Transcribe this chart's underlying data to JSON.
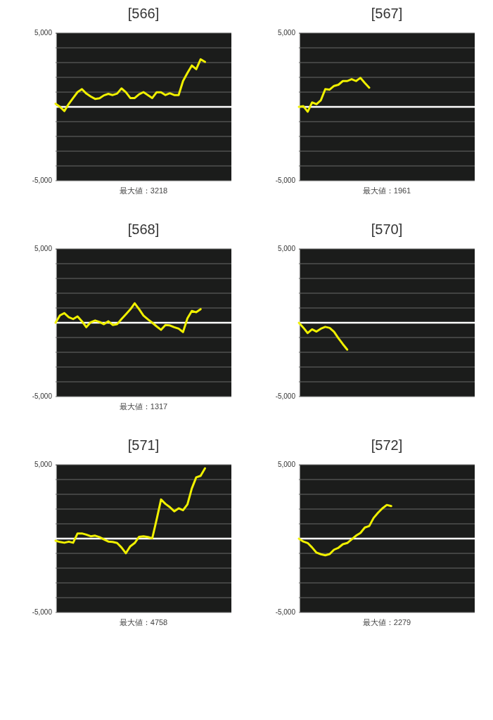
{
  "chart_data": [
    {
      "type": "line",
      "title": "[566]",
      "categories": [
        null,
        null,
        null,
        null,
        null,
        null,
        null,
        null,
        null,
        null,
        null,
        null,
        null,
        null,
        null,
        null,
        null,
        null,
        null,
        null,
        null,
        null,
        null,
        null,
        null,
        null,
        null,
        null,
        null,
        null,
        null,
        null,
        null,
        null,
        null,
        null,
        null,
        null,
        null,
        null,
        null
      ],
      "ylim": [
        -5000,
        5000
      ],
      "yticks": [
        {
          "value": 5000,
          "label": "5,000"
        },
        {
          "value": 4000,
          "label": null
        },
        {
          "value": 3000,
          "label": null
        },
        {
          "value": 2000,
          "label": null
        },
        {
          "value": 1000,
          "label": null
        },
        {
          "value": -1000,
          "label": null
        },
        {
          "value": -2000,
          "label": null
        },
        {
          "value": -3000,
          "label": null
        },
        {
          "value": -4000,
          "label": null
        },
        {
          "value": -5000,
          "label": "-5,000"
        }
      ],
      "grid": "y",
      "tick_labels": "y",
      "ref_lines": [
        {
          "axis": "y",
          "value": 0,
          "color": "#ffffff"
        }
      ],
      "annotations": [
        "最大値：3218"
      ],
      "series": [
        {
          "color": "#f0f000",
          "values": [
            210,
            0,
            -280,
            200,
            600,
            1000,
            1200,
            900,
            700,
            540,
            580,
            780,
            880,
            800,
            900,
            1250,
            990,
            600,
            600,
            850,
            1000,
            800,
            600,
            990,
            990,
            800,
            920,
            800,
            800,
            1750,
            2300,
            2800,
            2550,
            3218,
            3050,
            null,
            null,
            null,
            null,
            null,
            null
          ]
        }
      ]
    },
    {
      "type": "line",
      "title": "[567]",
      "categories": [
        null,
        null,
        null,
        null,
        null,
        null,
        null,
        null,
        null,
        null,
        null,
        null,
        null,
        null,
        null,
        null,
        null,
        null,
        null,
        null,
        null,
        null,
        null,
        null,
        null,
        null,
        null,
        null,
        null,
        null,
        null,
        null,
        null,
        null,
        null,
        null,
        null,
        null,
        null,
        null,
        null
      ],
      "ylim": [
        -5000,
        5000
      ],
      "yticks": [
        {
          "value": 5000,
          "label": "5,000"
        },
        {
          "value": 4000,
          "label": null
        },
        {
          "value": 3000,
          "label": null
        },
        {
          "value": 2000,
          "label": null
        },
        {
          "value": 1000,
          "label": null
        },
        {
          "value": -1000,
          "label": null
        },
        {
          "value": -2000,
          "label": null
        },
        {
          "value": -3000,
          "label": null
        },
        {
          "value": -4000,
          "label": null
        },
        {
          "value": -5000,
          "label": "-5,000"
        }
      ],
      "grid": "y",
      "tick_labels": "y",
      "ref_lines": [
        {
          "axis": "y",
          "value": 0,
          "color": "#ffffff"
        }
      ],
      "annotations": [
        "最大値：1961"
      ],
      "series": [
        {
          "color": "#f0f000",
          "values": [
            0,
            50,
            -330,
            300,
            180,
            450,
            1200,
            1170,
            1420,
            1500,
            1750,
            1750,
            1880,
            1750,
            1961,
            1620,
            1300,
            null,
            null,
            null,
            null,
            null,
            null,
            null,
            null,
            null,
            null,
            null,
            null,
            null,
            null,
            null,
            null,
            null,
            null,
            null,
            null,
            null,
            null,
            null,
            null
          ]
        }
      ]
    },
    {
      "type": "line",
      "title": "[568]",
      "categories": [
        null,
        null,
        null,
        null,
        null,
        null,
        null,
        null,
        null,
        null,
        null,
        null,
        null,
        null,
        null,
        null,
        null,
        null,
        null,
        null,
        null,
        null,
        null,
        null,
        null,
        null,
        null,
        null,
        null,
        null,
        null,
        null,
        null,
        null,
        null,
        null,
        null,
        null,
        null,
        null,
        null
      ],
      "ylim": [
        -5000,
        5000
      ],
      "yticks": [
        {
          "value": 5000,
          "label": "5,000"
        },
        {
          "value": 4000,
          "label": null
        },
        {
          "value": 3000,
          "label": null
        },
        {
          "value": 2000,
          "label": null
        },
        {
          "value": 1000,
          "label": null
        },
        {
          "value": -1000,
          "label": null
        },
        {
          "value": -2000,
          "label": null
        },
        {
          "value": -3000,
          "label": null
        },
        {
          "value": -4000,
          "label": null
        },
        {
          "value": -5000,
          "label": "-5,000"
        }
      ],
      "grid": "y",
      "tick_labels": "y",
      "ref_lines": [
        {
          "axis": "y",
          "value": 0,
          "color": "#ffffff"
        }
      ],
      "annotations": [
        "最大値：1317"
      ],
      "series": [
        {
          "color": "#f0f000",
          "values": [
            0,
            500,
            650,
            380,
            250,
            430,
            100,
            -300,
            30,
            150,
            50,
            -100,
            100,
            -150,
            -100,
            250,
            570,
            900,
            1317,
            920,
            480,
            230,
            0,
            -250,
            -480,
            -150,
            -180,
            -300,
            -400,
            -630,
            300,
            800,
            710,
            920,
            null,
            null,
            null,
            null,
            null,
            null,
            null
          ]
        }
      ]
    },
    {
      "type": "line",
      "title": "[570]",
      "categories": [
        null,
        null,
        null,
        null,
        null,
        null,
        null,
        null,
        null,
        null,
        null,
        null,
        null,
        null,
        null,
        null,
        null,
        null,
        null,
        null,
        null,
        null,
        null,
        null,
        null,
        null,
        null,
        null,
        null,
        null,
        null,
        null,
        null,
        null,
        null,
        null,
        null,
        null,
        null,
        null,
        null
      ],
      "ylim": [
        -5000,
        5000
      ],
      "yticks": [
        {
          "value": 5000,
          "label": "5,000"
        },
        {
          "value": 4000,
          "label": null
        },
        {
          "value": 3000,
          "label": null
        },
        {
          "value": 2000,
          "label": null
        },
        {
          "value": 1000,
          "label": null
        },
        {
          "value": -1000,
          "label": null
        },
        {
          "value": -2000,
          "label": null
        },
        {
          "value": -3000,
          "label": null
        },
        {
          "value": -4000,
          "label": null
        },
        {
          "value": -5000,
          "label": "-5,000"
        }
      ],
      "grid": "y",
      "tick_labels": "y",
      "ref_lines": [
        {
          "axis": "y",
          "value": 0,
          "color": "#ffffff"
        }
      ],
      "series": [
        {
          "color": "#f0f000",
          "values": [
            0,
            -330,
            -700,
            -450,
            -600,
            -400,
            -280,
            -350,
            -610,
            -1050,
            -1450,
            -1820,
            null,
            null,
            null,
            null,
            null,
            null,
            null,
            null,
            null,
            null,
            null,
            null,
            null,
            null,
            null,
            null,
            null,
            null,
            null,
            null,
            null,
            null,
            null,
            null,
            null,
            null,
            null,
            null,
            null
          ]
        }
      ]
    },
    {
      "type": "line",
      "title": "[571]",
      "categories": [
        null,
        null,
        null,
        null,
        null,
        null,
        null,
        null,
        null,
        null,
        null,
        null,
        null,
        null,
        null,
        null,
        null,
        null,
        null,
        null,
        null,
        null,
        null,
        null,
        null,
        null,
        null,
        null,
        null,
        null,
        null,
        null,
        null,
        null,
        null,
        null,
        null,
        null,
        null,
        null,
        null
      ],
      "ylim": [
        -5000,
        5000
      ],
      "yticks": [
        {
          "value": 5000,
          "label": "5,000"
        },
        {
          "value": 4000,
          "label": null
        },
        {
          "value": 3000,
          "label": null
        },
        {
          "value": 2000,
          "label": null
        },
        {
          "value": 1000,
          "label": null
        },
        {
          "value": -1000,
          "label": null
        },
        {
          "value": -2000,
          "label": null
        },
        {
          "value": -3000,
          "label": null
        },
        {
          "value": -4000,
          "label": null
        },
        {
          "value": -5000,
          "label": "-5,000"
        }
      ],
      "grid": "y",
      "tick_labels": "y",
      "ref_lines": [
        {
          "axis": "y",
          "value": 0,
          "color": "#ffffff"
        }
      ],
      "annotations": [
        "最大値：4758"
      ],
      "series": [
        {
          "color": "#f0f000",
          "values": [
            -140,
            -230,
            -280,
            -210,
            -280,
            350,
            350,
            270,
            160,
            200,
            100,
            -50,
            -200,
            -230,
            -300,
            -600,
            -990,
            -520,
            -300,
            120,
            150,
            110,
            20,
            1300,
            2650,
            2350,
            2130,
            1850,
            2050,
            1920,
            2320,
            3400,
            4150,
            4250,
            4758,
            null,
            null,
            null,
            null,
            null,
            null
          ]
        }
      ]
    },
    {
      "type": "line",
      "title": "[572]",
      "categories": [
        null,
        null,
        null,
        null,
        null,
        null,
        null,
        null,
        null,
        null,
        null,
        null,
        null,
        null,
        null,
        null,
        null,
        null,
        null,
        null,
        null,
        null,
        null,
        null,
        null,
        null,
        null,
        null,
        null,
        null,
        null,
        null,
        null,
        null,
        null,
        null,
        null,
        null,
        null,
        null,
        null
      ],
      "ylim": [
        -5000,
        5000
      ],
      "yticks": [
        {
          "value": 5000,
          "label": "5,000"
        },
        {
          "value": 4000,
          "label": null
        },
        {
          "value": 3000,
          "label": null
        },
        {
          "value": 2000,
          "label": null
        },
        {
          "value": 1000,
          "label": null
        },
        {
          "value": -1000,
          "label": null
        },
        {
          "value": -2000,
          "label": null
        },
        {
          "value": -3000,
          "label": null
        },
        {
          "value": -4000,
          "label": null
        },
        {
          "value": -5000,
          "label": "-5,000"
        }
      ],
      "grid": "y",
      "tick_labels": "y",
      "ref_lines": [
        {
          "axis": "y",
          "value": 0,
          "color": "#ffffff"
        }
      ],
      "annotations": [
        "最大値：2279"
      ],
      "series": [
        {
          "color": "#f0f000",
          "values": [
            0,
            -200,
            -300,
            -600,
            -950,
            -1060,
            -1130,
            -1050,
            -750,
            -620,
            -380,
            -300,
            -50,
            200,
            380,
            750,
            850,
            1400,
            1750,
            2050,
            2279,
            2200,
            null,
            null,
            null,
            null,
            null,
            null,
            null,
            null,
            null,
            null,
            null,
            null,
            null,
            null,
            null,
            null,
            null,
            null,
            null
          ]
        }
      ]
    }
  ]
}
